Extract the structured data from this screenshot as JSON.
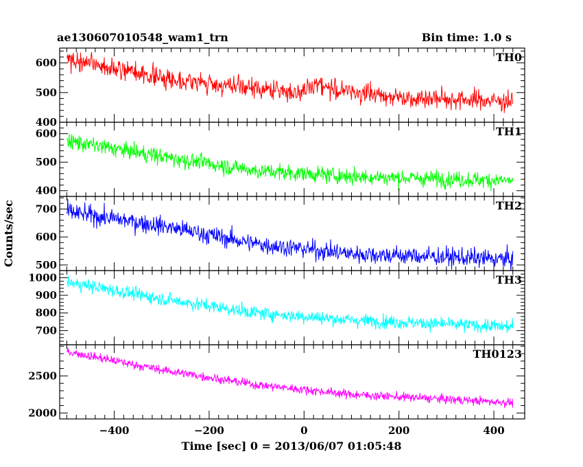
{
  "header": {
    "title": "ae130607010548_wam1_trn",
    "bin_time": "Bin time: 1.0 s"
  },
  "chart_data": {
    "type": "line",
    "xlabel": "Time [sec] 0 = 2013/06/07 01:05:48",
    "ylabel": "Counts/sec",
    "xlim": [
      -515,
      465
    ],
    "x_ticks": [
      -400,
      -200,
      0,
      200,
      400
    ],
    "x_tick_labels": [
      "−400",
      "−200",
      "0",
      "200",
      "400"
    ],
    "x_data_range": [
      -500,
      440
    ],
    "bin_size": 1.0,
    "grid": false,
    "panels": [
      {
        "name": "TH0",
        "color": "#ff0000",
        "ylim": [
          400,
          650
        ],
        "yticks": [
          400,
          500,
          600
        ],
        "trend": [
          [
            -500,
            610
          ],
          [
            -300,
            550
          ],
          [
            -150,
            520
          ],
          [
            0,
            500
          ],
          [
            25,
            535
          ],
          [
            60,
            510
          ],
          [
            200,
            485
          ],
          [
            440,
            470
          ]
        ],
        "noise": 28
      },
      {
        "name": "TH1",
        "color": "#00ff00",
        "ylim": [
          380,
          640
        ],
        "yticks": [
          400,
          500,
          600
        ],
        "trend": [
          [
            -500,
            575
          ],
          [
            -300,
            520
          ],
          [
            -100,
            470
          ],
          [
            100,
            450
          ],
          [
            440,
            435
          ]
        ],
        "noise": 24
      },
      {
        "name": "TH2",
        "color": "#0000ff",
        "ylim": [
          480,
          745
        ],
        "yticks": [
          500,
          600,
          700
        ],
        "trend": [
          [
            -500,
            690
          ],
          [
            -300,
            640
          ],
          [
            -100,
            575
          ],
          [
            100,
            540
          ],
          [
            440,
            520
          ]
        ],
        "noise": 28
      },
      {
        "name": "TH3",
        "color": "#00ffff",
        "ylim": [
          620,
          1040
        ],
        "yticks": [
          700,
          800,
          900,
          1000
        ],
        "trend": [
          [
            -500,
            975
          ],
          [
            -300,
            880
          ],
          [
            -100,
            800
          ],
          [
            100,
            760
          ],
          [
            440,
            720
          ]
        ],
        "noise": 32
      },
      {
        "name": "TH0123",
        "color": "#ff00ff",
        "ylim": [
          1920,
          2920
        ],
        "yticks": [
          2000,
          2500
        ],
        "trend": [
          [
            -500,
            2830
          ],
          [
            -300,
            2580
          ],
          [
            -100,
            2380
          ],
          [
            100,
            2250
          ],
          [
            440,
            2140
          ]
        ],
        "noise": 50
      }
    ]
  }
}
